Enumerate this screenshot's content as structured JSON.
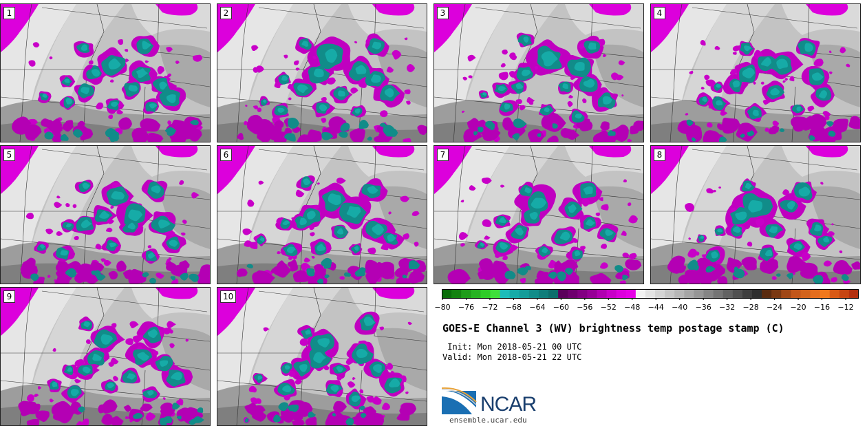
{
  "panels": [
    {
      "label": "1"
    },
    {
      "label": "2"
    },
    {
      "label": "3"
    },
    {
      "label": "4"
    },
    {
      "label": "5"
    },
    {
      "label": "6"
    },
    {
      "label": "7"
    },
    {
      "label": "8"
    },
    {
      "label": "9"
    },
    {
      "label": "10"
    }
  ],
  "colorbar": {
    "ticks": [
      "−80",
      "−76",
      "−72",
      "−68",
      "−64",
      "−60",
      "−56",
      "−52",
      "−48",
      "−44",
      "−40",
      "−36",
      "−32",
      "−28",
      "−24",
      "−20",
      "−16",
      "−12"
    ],
    "colors": [
      "#0a6e0a",
      "#13820f",
      "#1e9c19",
      "#27b322",
      "#2ecc27",
      "#3ee03a",
      "#1dbcb9",
      "#16aba7",
      "#139c99",
      "#118c89",
      "#0f7d7a",
      "#0d6e6b",
      "#5a005a",
      "#6e006e",
      "#820082",
      "#960096",
      "#b000b0",
      "#c800c8",
      "#dc00dc",
      "#e600e6",
      "#f2f2f2",
      "#e3e3e3",
      "#d4d4d4",
      "#c5c5c5",
      "#b6b6b6",
      "#a6a6a6",
      "#969696",
      "#858585",
      "#747474",
      "#626262",
      "#505050",
      "#3e3e3e",
      "#2e2e2e",
      "#5a2b10",
      "#7a3812",
      "#a04716",
      "#c2561a",
      "#d2631c",
      "#e36d1e",
      "#f0781c",
      "#d85a16",
      "#c64512",
      "#b4300e"
    ]
  },
  "title": "GOES-E Channel 3 (WV) brightness temp postage stamp (C)",
  "init": " Init: Mon 2018-05-21 00 UTC",
  "valid": "Valid: Mon 2018-05-21 22 UTC",
  "logo": {
    "text": "NCAR"
  },
  "url": "ensemble.ucar.edu"
}
